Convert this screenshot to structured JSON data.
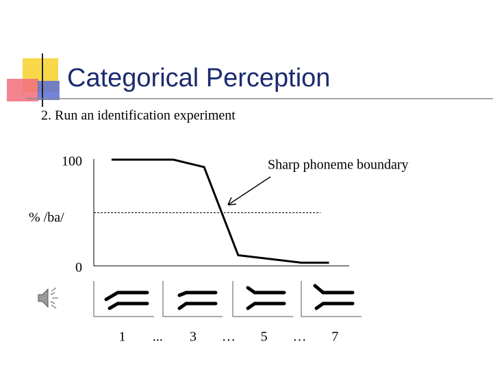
{
  "chart_data": {
    "type": "line",
    "title": "Categorical Perception",
    "subtitle": "2.  Run an identification experiment",
    "ylabel": "% /ba/",
    "annotation": "Sharp phoneme boundary",
    "x": [
      0.7,
      2.44,
      3.31,
      4.27,
      6.05,
      6.83
    ],
    "values": [
      100,
      100,
      93,
      10,
      3,
      3
    ],
    "color": "#000000",
    "xlim": [
      0.2,
      7.4
    ],
    "xticks": [
      {
        "value": 1,
        "label": "1"
      },
      {
        "value": 2,
        "label": "..."
      },
      {
        "value": 3,
        "label": "3"
      },
      {
        "value": 4,
        "label": "…"
      },
      {
        "value": 5,
        "label": "5"
      },
      {
        "value": 6,
        "label": "…"
      },
      {
        "value": 7,
        "label": "7"
      }
    ],
    "ylim": [
      0,
      100
    ],
    "yticks": [
      0,
      100
    ],
    "reference_line": 50,
    "grid": false
  }
}
